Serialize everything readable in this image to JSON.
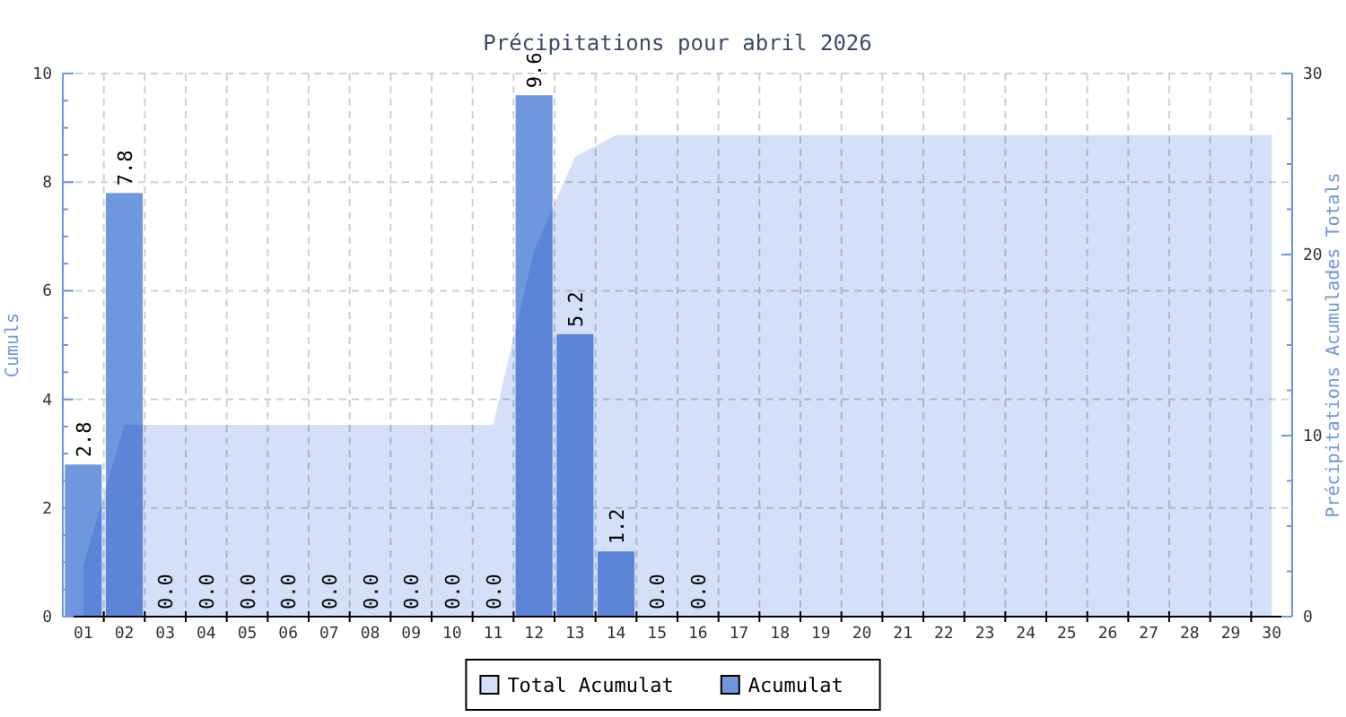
{
  "chart_data": {
    "type": "bar",
    "title": "Précipitations pour abril 2026",
    "ylabel": "Cumuls",
    "y2label": "Précipitations Acumulades Totals",
    "categories": [
      "01",
      "02",
      "03",
      "04",
      "05",
      "06",
      "07",
      "08",
      "09",
      "10",
      "11",
      "12",
      "13",
      "14",
      "15",
      "16",
      "17",
      "18",
      "19",
      "20",
      "21",
      "22",
      "23",
      "24",
      "25",
      "26",
      "27",
      "28",
      "29",
      "30"
    ],
    "series": [
      {
        "name": "Total Acumulat",
        "type": "area",
        "axis": "y2",
        "color": "#d3e0f8",
        "values": [
          2.8,
          10.6,
          10.6,
          10.6,
          10.6,
          10.6,
          10.6,
          10.6,
          10.6,
          10.6,
          10.6,
          20.2,
          25.4,
          26.6,
          26.6,
          26.6,
          26.6,
          26.6,
          26.6,
          26.6,
          26.6,
          26.6,
          26.6,
          26.6,
          26.6,
          26.6,
          26.6,
          26.6,
          26.6,
          26.6
        ]
      },
      {
        "name": "Acumulat",
        "color": "#6f97de",
        "values": [
          2.8,
          7.8,
          0,
          0,
          0,
          0,
          0,
          0,
          0,
          0,
          0,
          9.6,
          5.2,
          1.2,
          0,
          0,
          null,
          null,
          null,
          null,
          null,
          null,
          null,
          null,
          null,
          null,
          null,
          null,
          null,
          null
        ],
        "value_labels": [
          "2.8",
          "7.8",
          "0.0",
          "0.0",
          "0.0",
          "0.0",
          "0.0",
          "0.0",
          "0.0",
          "0.0",
          "0.0",
          "9.6",
          "5.2",
          "1.2",
          "0.0",
          "0.0",
          null,
          null,
          null,
          null,
          null,
          null,
          null,
          null,
          null,
          null,
          null,
          null,
          null,
          null
        ]
      }
    ],
    "ylim": [
      0,
      10
    ],
    "yticks": [
      0,
      {
        "value": 0.5,
        "label": null
      },
      {
        "value": 1,
        "label": null
      },
      {
        "value": 1.5,
        "label": null
      },
      2,
      {
        "value": 2.5,
        "label": null
      },
      {
        "value": 3,
        "label": null
      },
      {
        "value": 3.5,
        "label": null
      },
      4,
      {
        "value": 4.5,
        "label": null
      },
      {
        "value": 5,
        "label": null
      },
      {
        "value": 5.5,
        "label": null
      },
      6,
      {
        "value": 6.5,
        "label": null
      },
      {
        "value": 7,
        "label": null
      },
      {
        "value": 7.5,
        "label": null
      },
      8,
      {
        "value": 8.5,
        "label": null
      },
      {
        "value": 9,
        "label": null
      },
      {
        "value": 9.5,
        "label": null
      },
      10
    ],
    "y2lim": [
      0,
      30
    ],
    "y2ticks": [
      0,
      {
        "value": 2.5,
        "label": null
      },
      {
        "value": 5,
        "label": null
      },
      {
        "value": 7.5,
        "label": null
      },
      10,
      {
        "value": 12.5,
        "label": null
      },
      {
        "value": 15,
        "label": null
      },
      {
        "value": 17.5,
        "label": null
      },
      20,
      {
        "value": 22.5,
        "label": null
      },
      {
        "value": 25,
        "label": null
      },
      {
        "value": 27.5,
        "label": null
      },
      30
    ],
    "grid": true,
    "legend": "bottom"
  }
}
